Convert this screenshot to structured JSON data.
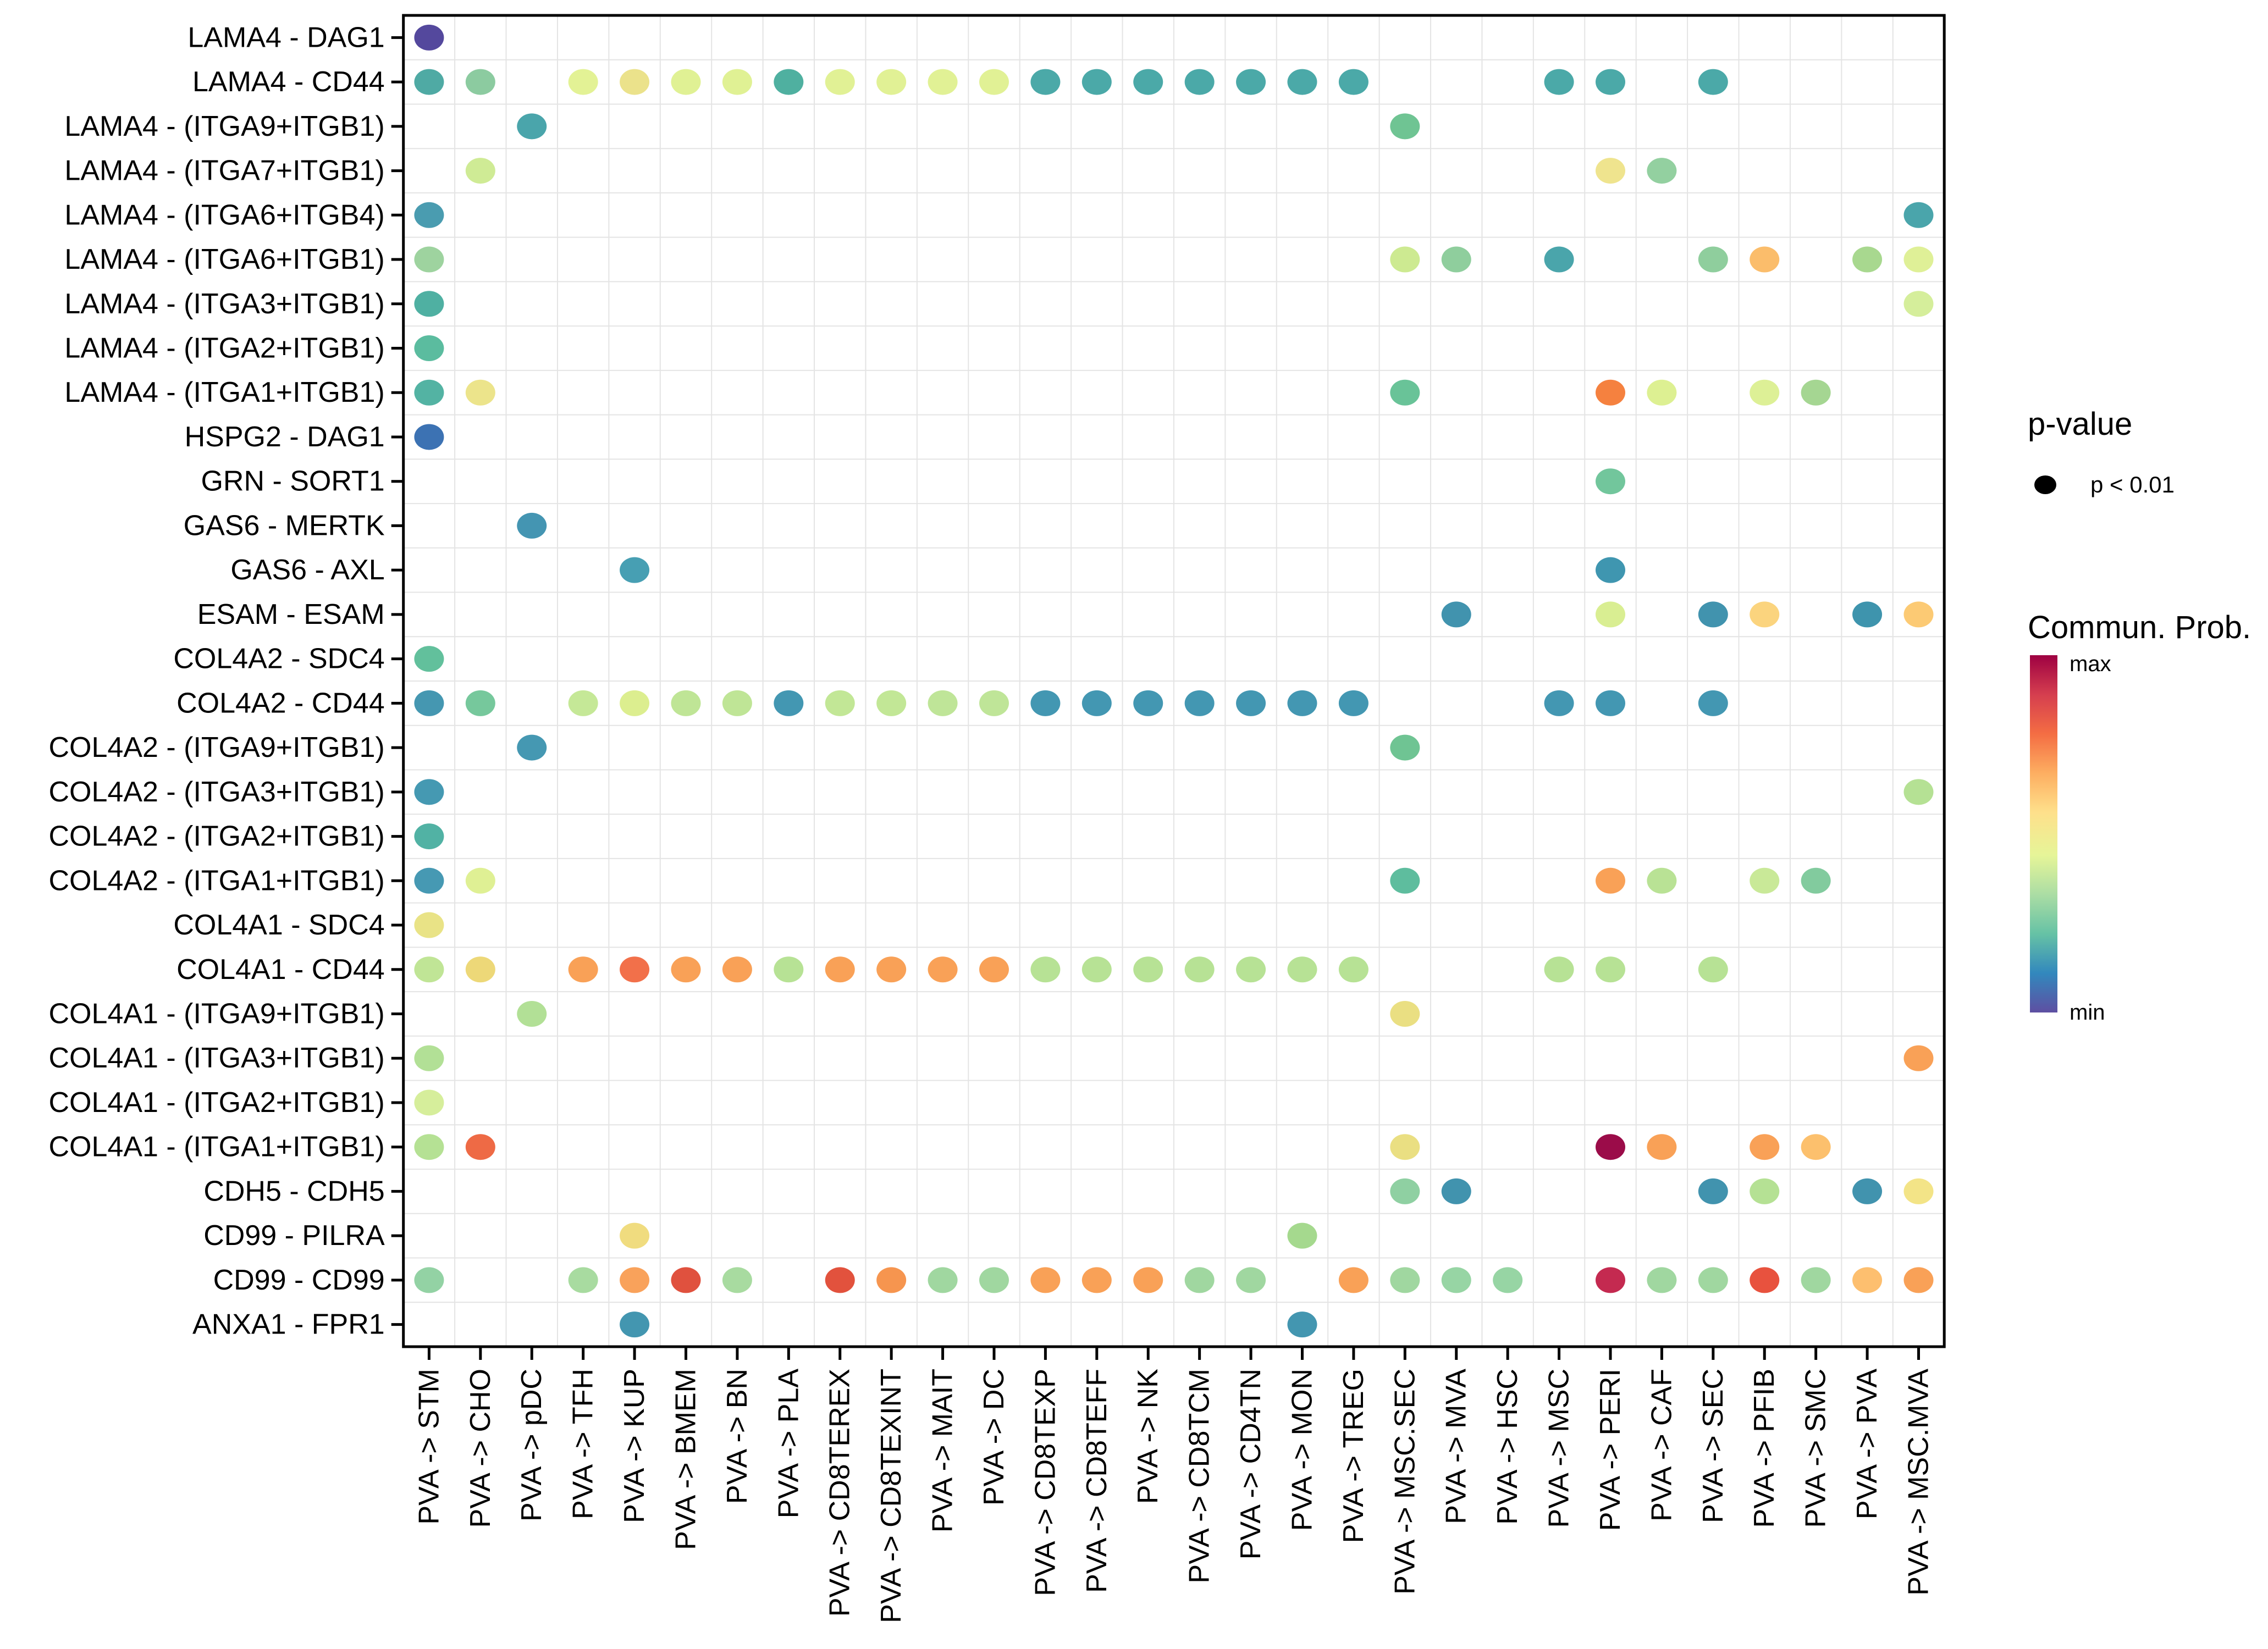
{
  "legend": {
    "pvalue_title": "p-value",
    "pvalue_item": "p < 0.01",
    "colorbar_title": "Commun. Prob.",
    "colorbar_max": "max",
    "colorbar_min": "min"
  },
  "chart_data": {
    "type": "bubble",
    "title": "",
    "xlabel": "",
    "ylabel": "",
    "grid": true,
    "legend_position": "right",
    "size_encoding": "all dots shown are significant: p < 0.01",
    "color_encoding": "communication probability, min (purple) to max (dark red), Spectral reversed colormap",
    "color_scale_stops": [
      "#5E4FA2",
      "#3288BD",
      "#66C2A5",
      "#ABDDA4",
      "#E6F598",
      "#FEE08B",
      "#FDAE61",
      "#F46D43",
      "#D53E4F",
      "#9E0142"
    ],
    "x_categories": [
      "PVA -> STM",
      "PVA -> CHO",
      "PVA -> pDC",
      "PVA -> TFH",
      "PVA -> KUP",
      "PVA -> BMEM",
      "PVA -> BN",
      "PVA -> PLA",
      "PVA -> CD8TEREX",
      "PVA -> CD8TEXINT",
      "PVA -> MAIT",
      "PVA -> DC",
      "PVA -> CD8TEXP",
      "PVA -> CD8TEFF",
      "PVA -> NK",
      "PVA -> CD8TCM",
      "PVA -> CD4TN",
      "PVA -> MON",
      "PVA -> TREG",
      "PVA -> MSC.SEC",
      "PVA -> MVA",
      "PVA -> HSC",
      "PVA -> MSC",
      "PVA -> PERI",
      "PVA -> CAF",
      "PVA -> SEC",
      "PVA -> PFIB",
      "PVA -> SMC",
      "PVA -> PVA",
      "PVA -> MSC.MVA"
    ],
    "y_categories": [
      "LAMA4 - DAG1",
      "LAMA4 - CD44",
      "LAMA4 - (ITGA9+ITGB1)",
      "LAMA4 - (ITGA7+ITGB1)",
      "LAMA4 - (ITGA6+ITGB4)",
      "LAMA4 - (ITGA6+ITGB1)",
      "LAMA4 - (ITGA3+ITGB1)",
      "LAMA4 - (ITGA2+ITGB1)",
      "LAMA4 - (ITGA1+ITGB1)",
      "HSPG2 - DAG1",
      "GRN - SORT1",
      "GAS6 - MERTK",
      "GAS6 - AXL",
      "ESAM - ESAM",
      "COL4A2 - SDC4",
      "COL4A2 - CD44",
      "COL4A2 - (ITGA9+ITGB1)",
      "COL4A2 - (ITGA3+ITGB1)",
      "COL4A2 - (ITGA2+ITGB1)",
      "COL4A2 - (ITGA1+ITGB1)",
      "COL4A1 - SDC4",
      "COL4A1 - CD44",
      "COL4A1 - (ITGA9+ITGB1)",
      "COL4A1 - (ITGA3+ITGB1)",
      "COL4A1 - (ITGA2+ITGB1)",
      "COL4A1 - (ITGA1+ITGB1)",
      "CDH5 - CDH5",
      "CD99 - PILRA",
      "CD99 - CD99",
      "ANXA1 - FPR1"
    ],
    "points_format": "[y_index, x_index, color]",
    "points": [
      [
        0,
        0,
        "#54489d"
      ],
      [
        1,
        0,
        "#4faaa4"
      ],
      [
        1,
        1,
        "#8ccba0"
      ],
      [
        1,
        3,
        "#e3f295"
      ],
      [
        1,
        4,
        "#ebe28b"
      ],
      [
        1,
        5,
        "#e0f194"
      ],
      [
        1,
        6,
        "#e0f194"
      ],
      [
        1,
        7,
        "#4fb0a0"
      ],
      [
        1,
        8,
        "#e1f195"
      ],
      [
        1,
        9,
        "#e1f195"
      ],
      [
        1,
        10,
        "#e1f195"
      ],
      [
        1,
        11,
        "#e1f195"
      ],
      [
        1,
        12,
        "#4ba9a8"
      ],
      [
        1,
        13,
        "#4ba9a8"
      ],
      [
        1,
        14,
        "#4ba9a8"
      ],
      [
        1,
        15,
        "#4ba9a8"
      ],
      [
        1,
        16,
        "#4ba9a8"
      ],
      [
        1,
        17,
        "#4ba9a8"
      ],
      [
        1,
        18,
        "#4ba9a8"
      ],
      [
        1,
        22,
        "#4ba9a8"
      ],
      [
        1,
        23,
        "#4ba9a8"
      ],
      [
        1,
        25,
        "#4ba9a8"
      ],
      [
        2,
        2,
        "#4aa5ab"
      ],
      [
        2,
        19,
        "#6fc493"
      ],
      [
        3,
        1,
        "#cfeb95"
      ],
      [
        3,
        23,
        "#efe48e"
      ],
      [
        3,
        24,
        "#93d0a0"
      ],
      [
        4,
        0,
        "#4a9cb0"
      ],
      [
        4,
        29,
        "#4aa5ab"
      ],
      [
        5,
        0,
        "#9ed39f"
      ],
      [
        5,
        19,
        "#cdea91"
      ],
      [
        5,
        20,
        "#8fce9d"
      ],
      [
        5,
        22,
        "#4aa5ab"
      ],
      [
        5,
        25,
        "#8fce9d"
      ],
      [
        5,
        26,
        "#fbbd6b"
      ],
      [
        5,
        28,
        "#a8d88f"
      ],
      [
        5,
        29,
        "#dff097"
      ],
      [
        6,
        0,
        "#4fb0a2"
      ],
      [
        6,
        29,
        "#d5ee9b"
      ],
      [
        7,
        0,
        "#5bbc9f"
      ],
      [
        8,
        0,
        "#53b3a3"
      ],
      [
        8,
        1,
        "#ece48b"
      ],
      [
        8,
        19,
        "#69c398"
      ],
      [
        8,
        23,
        "#f5813f"
      ],
      [
        8,
        24,
        "#ddf092"
      ],
      [
        8,
        26,
        "#ddf096"
      ],
      [
        8,
        27,
        "#a5d692"
      ],
      [
        9,
        0,
        "#3c72b3"
      ],
      [
        10,
        23,
        "#72c69c"
      ],
      [
        11,
        2,
        "#4495b2"
      ],
      [
        12,
        4,
        "#479fb3"
      ],
      [
        12,
        23,
        "#3f96b0"
      ],
      [
        13,
        20,
        "#4193ae"
      ],
      [
        13,
        23,
        "#d9ee92"
      ],
      [
        13,
        25,
        "#4193ae"
      ],
      [
        13,
        26,
        "#fbd47e"
      ],
      [
        13,
        28,
        "#3e94ad"
      ],
      [
        13,
        29,
        "#fcca74"
      ],
      [
        14,
        0,
        "#62c09c"
      ],
      [
        15,
        0,
        "#4597b1"
      ],
      [
        15,
        1,
        "#76c89c"
      ],
      [
        15,
        3,
        "#c5e897"
      ],
      [
        15,
        4,
        "#dcee8f"
      ],
      [
        15,
        5,
        "#bfe596"
      ],
      [
        15,
        6,
        "#bfe596"
      ],
      [
        15,
        7,
        "#4397b2"
      ],
      [
        15,
        8,
        "#c2e796"
      ],
      [
        15,
        9,
        "#c2e796"
      ],
      [
        15,
        10,
        "#bfe598"
      ],
      [
        15,
        11,
        "#bfe598"
      ],
      [
        15,
        12,
        "#4397b2"
      ],
      [
        15,
        13,
        "#4397b2"
      ],
      [
        15,
        14,
        "#4397b2"
      ],
      [
        15,
        15,
        "#4397b2"
      ],
      [
        15,
        16,
        "#4397b2"
      ],
      [
        15,
        17,
        "#4397b2"
      ],
      [
        15,
        18,
        "#4397b2"
      ],
      [
        15,
        22,
        "#4397b2"
      ],
      [
        15,
        23,
        "#4397b2"
      ],
      [
        15,
        25,
        "#4397b2"
      ],
      [
        16,
        2,
        "#4598b2"
      ],
      [
        16,
        19,
        "#6fc493"
      ],
      [
        17,
        0,
        "#4599b2"
      ],
      [
        17,
        29,
        "#b5e194"
      ],
      [
        18,
        0,
        "#51b2a4"
      ],
      [
        19,
        0,
        "#4699b3"
      ],
      [
        19,
        1,
        "#dff094"
      ],
      [
        19,
        19,
        "#5ebd9e"
      ],
      [
        19,
        23,
        "#f9a157"
      ],
      [
        19,
        24,
        "#b9e295"
      ],
      [
        19,
        26,
        "#c9e998"
      ],
      [
        19,
        27,
        "#82cb9e"
      ],
      [
        20,
        0,
        "#e9e386"
      ],
      [
        21,
        0,
        "#c0e596"
      ],
      [
        21,
        1,
        "#edd878"
      ],
      [
        21,
        3,
        "#f9a157"
      ],
      [
        21,
        4,
        "#f2704a"
      ],
      [
        21,
        5,
        "#f9a157"
      ],
      [
        21,
        6,
        "#f9a157"
      ],
      [
        21,
        7,
        "#b7e295"
      ],
      [
        21,
        8,
        "#f9a157"
      ],
      [
        21,
        9,
        "#f9a157"
      ],
      [
        21,
        10,
        "#f9a157"
      ],
      [
        21,
        11,
        "#f9a157"
      ],
      [
        21,
        12,
        "#b7e295"
      ],
      [
        21,
        13,
        "#b7e295"
      ],
      [
        21,
        14,
        "#b7e295"
      ],
      [
        21,
        15,
        "#b7e295"
      ],
      [
        21,
        16,
        "#b7e295"
      ],
      [
        21,
        17,
        "#b7e295"
      ],
      [
        21,
        18,
        "#b7e295"
      ],
      [
        21,
        22,
        "#b7e295"
      ],
      [
        21,
        23,
        "#b7e295"
      ],
      [
        21,
        25,
        "#b7e295"
      ],
      [
        22,
        2,
        "#b2e096"
      ],
      [
        22,
        19,
        "#eadf82"
      ],
      [
        23,
        0,
        "#b2e096"
      ],
      [
        23,
        29,
        "#f9a157"
      ],
      [
        24,
        0,
        "#d6ee9b"
      ],
      [
        25,
        0,
        "#b5e194"
      ],
      [
        25,
        1,
        "#ee6a45"
      ],
      [
        25,
        19,
        "#eadf82"
      ],
      [
        25,
        23,
        "#9b0c49"
      ],
      [
        25,
        24,
        "#f9a157"
      ],
      [
        25,
        26,
        "#f9a157"
      ],
      [
        25,
        27,
        "#fcc06d"
      ],
      [
        26,
        19,
        "#8fd0a2"
      ],
      [
        26,
        20,
        "#4193ae"
      ],
      [
        26,
        25,
        "#4193ae"
      ],
      [
        26,
        26,
        "#b5e194"
      ],
      [
        26,
        28,
        "#4193ae"
      ],
      [
        26,
        29,
        "#f3e487"
      ],
      [
        27,
        4,
        "#f0dc7f"
      ],
      [
        27,
        17,
        "#a5d98e"
      ],
      [
        28,
        0,
        "#93d2a4"
      ],
      [
        28,
        3,
        "#a8dba0"
      ],
      [
        28,
        4,
        "#f9a25b"
      ],
      [
        28,
        5,
        "#e0513e"
      ],
      [
        28,
        6,
        "#a8dba0"
      ],
      [
        28,
        8,
        "#e2523d"
      ],
      [
        28,
        9,
        "#f6954f"
      ],
      [
        28,
        10,
        "#a0d7a0"
      ],
      [
        28,
        11,
        "#a0d7a0"
      ],
      [
        28,
        12,
        "#f9a157"
      ],
      [
        28,
        13,
        "#f9a157"
      ],
      [
        28,
        14,
        "#f9a157"
      ],
      [
        28,
        15,
        "#a0d7a0"
      ],
      [
        28,
        16,
        "#a0d7a0"
      ],
      [
        28,
        18,
        "#f9a157"
      ],
      [
        28,
        19,
        "#a0d7a0"
      ],
      [
        28,
        20,
        "#97d5a4"
      ],
      [
        28,
        21,
        "#97d5a4"
      ],
      [
        28,
        23,
        "#c42a50"
      ],
      [
        28,
        24,
        "#a0d7a0"
      ],
      [
        28,
        25,
        "#a0d7a0"
      ],
      [
        28,
        26,
        "#e8523e"
      ],
      [
        28,
        27,
        "#a0d7a0"
      ],
      [
        28,
        28,
        "#fdbf6f"
      ],
      [
        28,
        29,
        "#f9a157"
      ],
      [
        29,
        4,
        "#4396b0"
      ],
      [
        29,
        17,
        "#4396b0"
      ]
    ]
  }
}
